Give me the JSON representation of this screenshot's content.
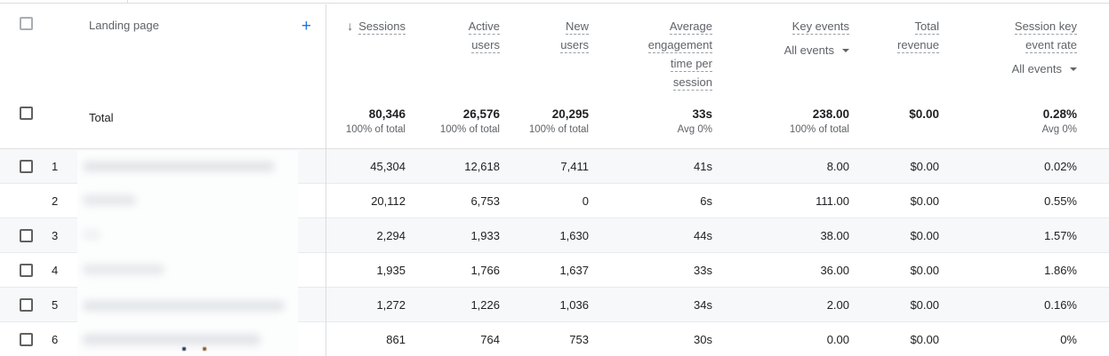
{
  "table": {
    "dimension_header": {
      "label": "Landing page",
      "add_button": "+"
    },
    "sort_arrow": "↓",
    "filter_caret": "▾",
    "columns": [
      {
        "id": "sessions",
        "lines": [
          "Sessions"
        ],
        "sorted": true
      },
      {
        "id": "active-users",
        "lines": [
          "Active",
          "users"
        ]
      },
      {
        "id": "new-users",
        "lines": [
          "New",
          "users"
        ]
      },
      {
        "id": "avg-engagement-time",
        "lines": [
          "Average",
          "engagement",
          "time per",
          "session"
        ]
      },
      {
        "id": "key-events",
        "lines": [
          "Key events"
        ],
        "filter": "All events"
      },
      {
        "id": "total-revenue",
        "lines": [
          "Total",
          "revenue"
        ]
      },
      {
        "id": "session-key-event-rate",
        "lines": [
          "Session key",
          "event rate"
        ],
        "filter": "All events"
      }
    ],
    "totals": {
      "label": "Total",
      "values": [
        "80,346",
        "26,576",
        "20,295",
        "33s",
        "238.00",
        "$0.00",
        "0.28%"
      ],
      "subs": [
        "100% of total",
        "100% of total",
        "100% of total",
        "Avg 0%",
        "100% of total",
        "",
        "Avg 0%"
      ]
    },
    "rows": [
      {
        "num": "1",
        "checkbox": true,
        "shaded": true,
        "values": [
          "45,304",
          "12,618",
          "7,411",
          "41s",
          "8.00",
          "$0.00",
          "0.02%"
        ]
      },
      {
        "num": "2",
        "checkbox": false,
        "shaded": false,
        "values": [
          "20,112",
          "6,753",
          "0",
          "6s",
          "111.00",
          "$0.00",
          "0.55%"
        ]
      },
      {
        "num": "3",
        "checkbox": true,
        "shaded": true,
        "values": [
          "2,294",
          "1,933",
          "1,630",
          "44s",
          "38.00",
          "$0.00",
          "1.57%"
        ]
      },
      {
        "num": "4",
        "checkbox": true,
        "shaded": false,
        "values": [
          "1,935",
          "1,766",
          "1,637",
          "33s",
          "36.00",
          "$0.00",
          "1.86%"
        ]
      },
      {
        "num": "5",
        "checkbox": true,
        "shaded": true,
        "values": [
          "1,272",
          "1,226",
          "1,036",
          "34s",
          "2.00",
          "$0.00",
          "0.16%"
        ]
      },
      {
        "num": "6",
        "checkbox": true,
        "shaded": false,
        "values": [
          "861",
          "764",
          "753",
          "30s",
          "0.00",
          "$0.00",
          "0%"
        ]
      }
    ],
    "colors": {
      "accent": "#1a73e8",
      "header_text": "#5f6368",
      "value_text": "#202124",
      "row_shade": "#f7f8f9",
      "divider": "#dadce0",
      "row_border": "#e8eaed"
    }
  }
}
